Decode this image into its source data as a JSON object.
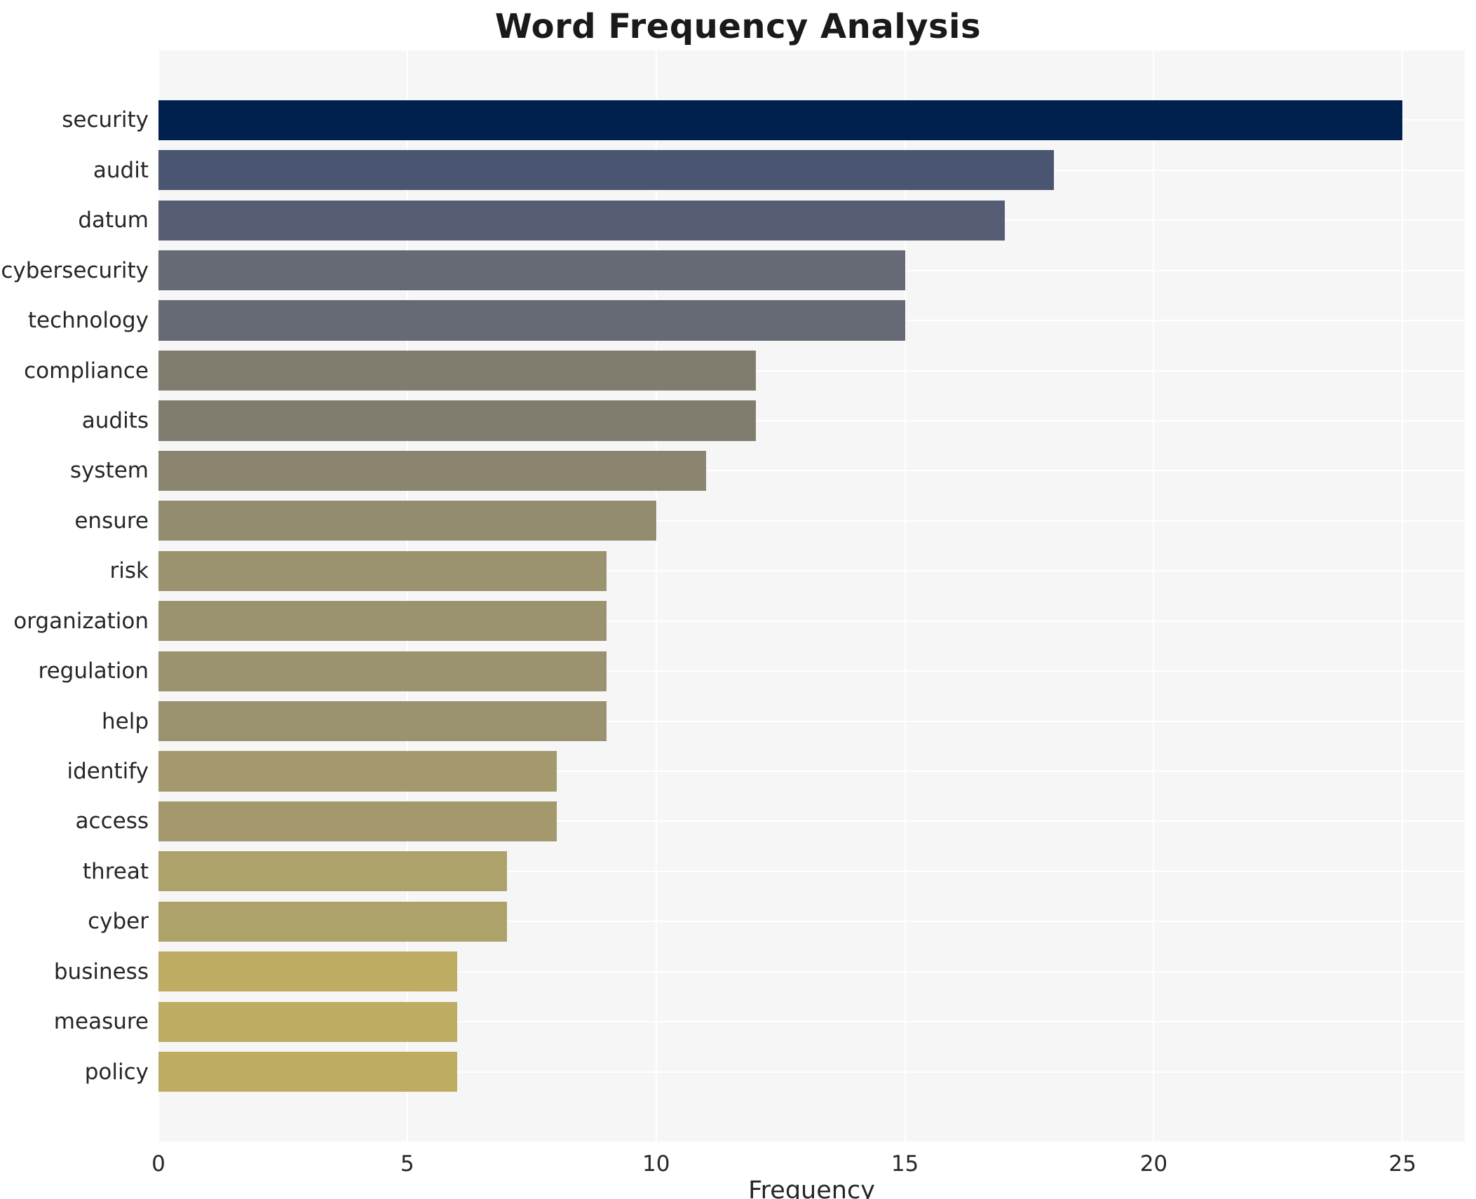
{
  "title": "Word Frequency Analysis",
  "x_axis": {
    "label": "Frequency",
    "ticks": [
      0,
      5,
      10,
      15,
      20,
      25
    ],
    "max_display": 26.25
  },
  "colors": {
    "plot_background": "#f6f6f7",
    "gridline": "#ffffff",
    "text": "#262626",
    "title_text": "#1a1a1a"
  },
  "chart_data": {
    "type": "bar",
    "orientation": "horizontal",
    "title": "Word Frequency Analysis",
    "xlabel": "Frequency",
    "ylabel": "",
    "grid": true,
    "legend": false,
    "xlim": [
      0,
      26.25
    ],
    "x_ticks": [
      0,
      5,
      10,
      15,
      20,
      25
    ],
    "categories": [
      "security",
      "audit",
      "datum",
      "cybersecurity",
      "technology",
      "compliance",
      "audits",
      "system",
      "ensure",
      "risk",
      "organization",
      "regulation",
      "help",
      "identify",
      "access",
      "threat",
      "cyber",
      "business",
      "measure",
      "policy"
    ],
    "values": [
      25,
      18,
      17,
      15,
      15,
      12,
      12,
      11,
      10,
      9,
      9,
      9,
      9,
      8,
      8,
      7,
      7,
      6,
      6,
      6
    ],
    "bar_colors": [
      "#00214e",
      "#4a5571",
      "#555d74",
      "#666a74",
      "#666a74",
      "#817d6e",
      "#817d6e",
      "#8b8570",
      "#948c6e",
      "#9b9270",
      "#9b9270",
      "#9b9270",
      "#9b9270",
      "#a3996d",
      "#a3996d",
      "#aca26a",
      "#aca26a",
      "#bdac62",
      "#bdac62",
      "#bdac62"
    ],
    "colormap": "cividis"
  }
}
